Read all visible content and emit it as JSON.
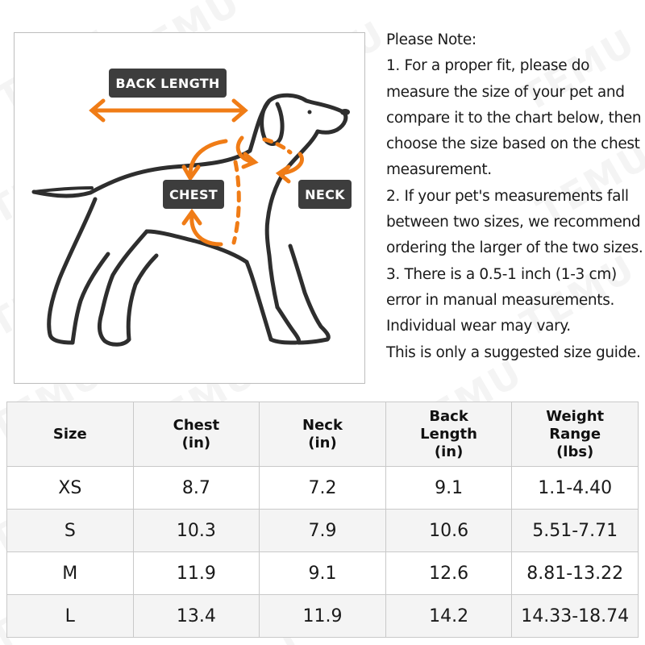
{
  "diagram": {
    "labels": {
      "back_length": "BACK LENGTH",
      "chest": "CHEST",
      "neck": "NECK"
    },
    "colors": {
      "accent": "#f07c16",
      "tag_bg": "#3d3d3d",
      "outline": "#2e2e2e"
    }
  },
  "notes": {
    "lines": [
      "Please Note:",
      "1. For a proper fit, please do measure the size of your pet and compare it to the chart below, then choose the size based on the chest measurement.",
      "2. If your pet's measurements fall between two sizes, we recommend ordering the larger of the two sizes.",
      "3. There is a 0.5-1 inch (1-3 cm) error in manual measurements. Individual wear may vary.",
      "This is only a suggested size guide."
    ]
  },
  "table": {
    "headers": [
      "Size",
      "Chest\n(in)",
      "Neck\n(in)",
      "Back\nLength\n(in)",
      "Weight\nRange\n(lbs)"
    ],
    "rows": [
      [
        "XS",
        "8.7",
        "7.2",
        "9.1",
        "1.1-4.40"
      ],
      [
        "S",
        "10.3",
        "7.9",
        "10.6",
        "5.51-7.71"
      ],
      [
        "M",
        "11.9",
        "9.1",
        "12.6",
        "8.81-13.22"
      ],
      [
        "L",
        "13.4",
        "11.9",
        "14.2",
        "14.33-18.74"
      ]
    ]
  },
  "watermark": {
    "text": "TEMU"
  }
}
